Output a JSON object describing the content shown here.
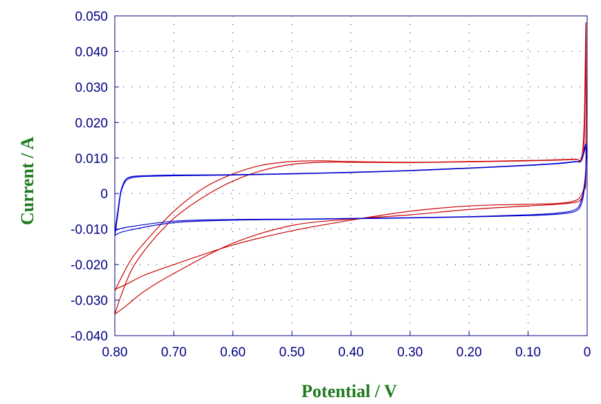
{
  "chart_data": {
    "type": "line",
    "title": "",
    "xlabel": "Potential / V",
    "ylabel": "Current / A",
    "xlim": [
      0.8,
      0
    ],
    "ylim": [
      -0.04,
      0.05
    ],
    "x_reversed": true,
    "grid": true,
    "x_ticks": [
      {
        "v": 0.8,
        "label": "0.80"
      },
      {
        "v": 0.7,
        "label": "0.70"
      },
      {
        "v": 0.6,
        "label": "0.60"
      },
      {
        "v": 0.5,
        "label": "0.50"
      },
      {
        "v": 0.4,
        "label": "0.40"
      },
      {
        "v": 0.3,
        "label": "0.30"
      },
      {
        "v": 0.2,
        "label": "0.20"
      },
      {
        "v": 0.1,
        "label": "0.10"
      },
      {
        "v": 0,
        "label": "0"
      }
    ],
    "y_ticks": [
      {
        "v": 0.05,
        "label": "0.050"
      },
      {
        "v": 0.04,
        "label": "0.040"
      },
      {
        "v": 0.03,
        "label": "0.030"
      },
      {
        "v": 0.02,
        "label": "0.020"
      },
      {
        "v": 0.01,
        "label": "0.010"
      },
      {
        "v": 0,
        "label": "0"
      },
      {
        "v": -0.01,
        "label": "-0.010"
      },
      {
        "v": -0.02,
        "label": "-0.020"
      },
      {
        "v": -0.03,
        "label": "-0.030"
      },
      {
        "v": -0.04,
        "label": "-0.040"
      }
    ],
    "series": [
      {
        "color": "#cc0000",
        "x": [
          0.8,
          0.79,
          0.77,
          0.74,
          0.7,
          0.65,
          0.6,
          0.55,
          0.5,
          0.45,
          0.4,
          0.3,
          0.2,
          0.1,
          0.05,
          0.02,
          0.01,
          0.005,
          0.002,
          0.002,
          0.005,
          0.01,
          0.02,
          0.05,
          0.1,
          0.2,
          0.3,
          0.4,
          0.5,
          0.6,
          0.7,
          0.75,
          0.78,
          0.8
        ],
        "y": [
          -0.0275,
          -0.024,
          -0.018,
          -0.012,
          -0.005,
          0.0015,
          0.0055,
          0.008,
          0.009,
          0.0092,
          0.009,
          0.0088,
          0.009,
          0.0093,
          0.0095,
          0.0097,
          0.0098,
          0.02,
          0.048,
          0.007,
          0.002,
          -0.0005,
          -0.002,
          -0.0028,
          -0.003,
          -0.0035,
          -0.005,
          -0.0075,
          -0.0105,
          -0.0145,
          -0.02,
          -0.023,
          -0.0255,
          -0.027
        ]
      },
      {
        "color": "#cc0000",
        "x": [
          0.8,
          0.79,
          0.77,
          0.74,
          0.7,
          0.65,
          0.6,
          0.55,
          0.5,
          0.45,
          0.4,
          0.3,
          0.2,
          0.1,
          0.05,
          0.02,
          0.01,
          0.005,
          0.002,
          0.002,
          0.005,
          0.01,
          0.02,
          0.05,
          0.1,
          0.2,
          0.3,
          0.4,
          0.5,
          0.6,
          0.7,
          0.75,
          0.78,
          0.8
        ],
        "y": [
          -0.034,
          -0.029,
          -0.021,
          -0.014,
          -0.007,
          -0.001,
          0.0035,
          0.0065,
          0.0082,
          0.0088,
          0.0088,
          0.0087,
          0.0089,
          0.0092,
          0.0094,
          0.0096,
          0.0097,
          0.015,
          0.042,
          0.006,
          0.001,
          -0.0015,
          -0.0025,
          -0.003,
          -0.0035,
          -0.0045,
          -0.006,
          -0.0072,
          -0.009,
          -0.014,
          -0.0225,
          -0.0275,
          -0.0315,
          -0.034
        ]
      },
      {
        "color": "#0000cc",
        "x": [
          0.8,
          0.795,
          0.79,
          0.785,
          0.78,
          0.77,
          0.75,
          0.7,
          0.6,
          0.5,
          0.4,
          0.3,
          0.2,
          0.1,
          0.05,
          0.02,
          0.01,
          0.002,
          0.002,
          0.005,
          0.01,
          0.02,
          0.05,
          0.1,
          0.2,
          0.3,
          0.4,
          0.5,
          0.6,
          0.7,
          0.78,
          0.8
        ],
        "y": [
          -0.011,
          -0.005,
          0.0005,
          0.003,
          0.0042,
          0.0048,
          0.005,
          0.0052,
          0.0053,
          0.0056,
          0.006,
          0.0065,
          0.0072,
          0.008,
          0.0085,
          0.009,
          0.0093,
          0.014,
          0.008,
          0.002,
          -0.002,
          -0.0045,
          -0.0055,
          -0.006,
          -0.0065,
          -0.0068,
          -0.007,
          -0.0072,
          -0.0073,
          -0.0078,
          -0.0095,
          -0.0105
        ]
      },
      {
        "color": "#0000cc",
        "x": [
          0.8,
          0.795,
          0.79,
          0.785,
          0.78,
          0.77,
          0.75,
          0.7,
          0.6,
          0.5,
          0.4,
          0.3,
          0.2,
          0.1,
          0.05,
          0.02,
          0.01,
          0.002,
          0.002,
          0.005,
          0.01,
          0.02,
          0.05,
          0.1,
          0.2,
          0.3,
          0.4,
          0.5,
          0.6,
          0.7,
          0.78,
          0.8
        ],
        "y": [
          -0.012,
          -0.006,
          0.0,
          0.0025,
          0.0038,
          0.0045,
          0.0048,
          0.005,
          0.0052,
          0.0055,
          0.0059,
          0.0064,
          0.0071,
          0.0079,
          0.0084,
          0.0089,
          0.0092,
          0.013,
          0.007,
          0.001,
          -0.003,
          -0.005,
          -0.0058,
          -0.0062,
          -0.0066,
          -0.0069,
          -0.0071,
          -0.0073,
          -0.0075,
          -0.0082,
          -0.0105,
          -0.0118
        ]
      }
    ]
  }
}
